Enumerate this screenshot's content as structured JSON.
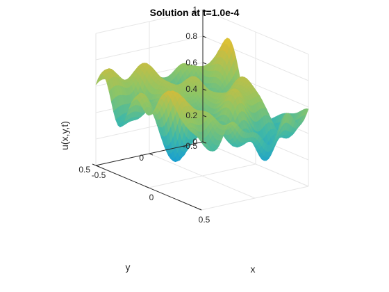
{
  "chart_data": {
    "type": "surface",
    "title": "Solution at t=1.0e-4",
    "xlabel": "x",
    "ylabel": "y",
    "zlabel": "u(x,y,t)",
    "xlim": [
      -0.5,
      0.5
    ],
    "ylim": [
      -0.5,
      0.5
    ],
    "zlim": [
      0,
      1
    ],
    "x_ticks": [
      "-0.5",
      "0",
      "0.5"
    ],
    "y_ticks": [
      "-0.5",
      "0",
      "0.5"
    ],
    "z_ticks": [
      "0",
      "0.2",
      "0.4",
      "0.6",
      "0.8",
      "1"
    ],
    "colormap": [
      "#0072bd",
      "#1a9fd0",
      "#3fb8a8",
      "#8fc565",
      "#d4bc3a",
      "#f9d827"
    ],
    "z_mean_approx": 0.55,
    "z_amplitude_approx": 0.35,
    "grid": true
  }
}
